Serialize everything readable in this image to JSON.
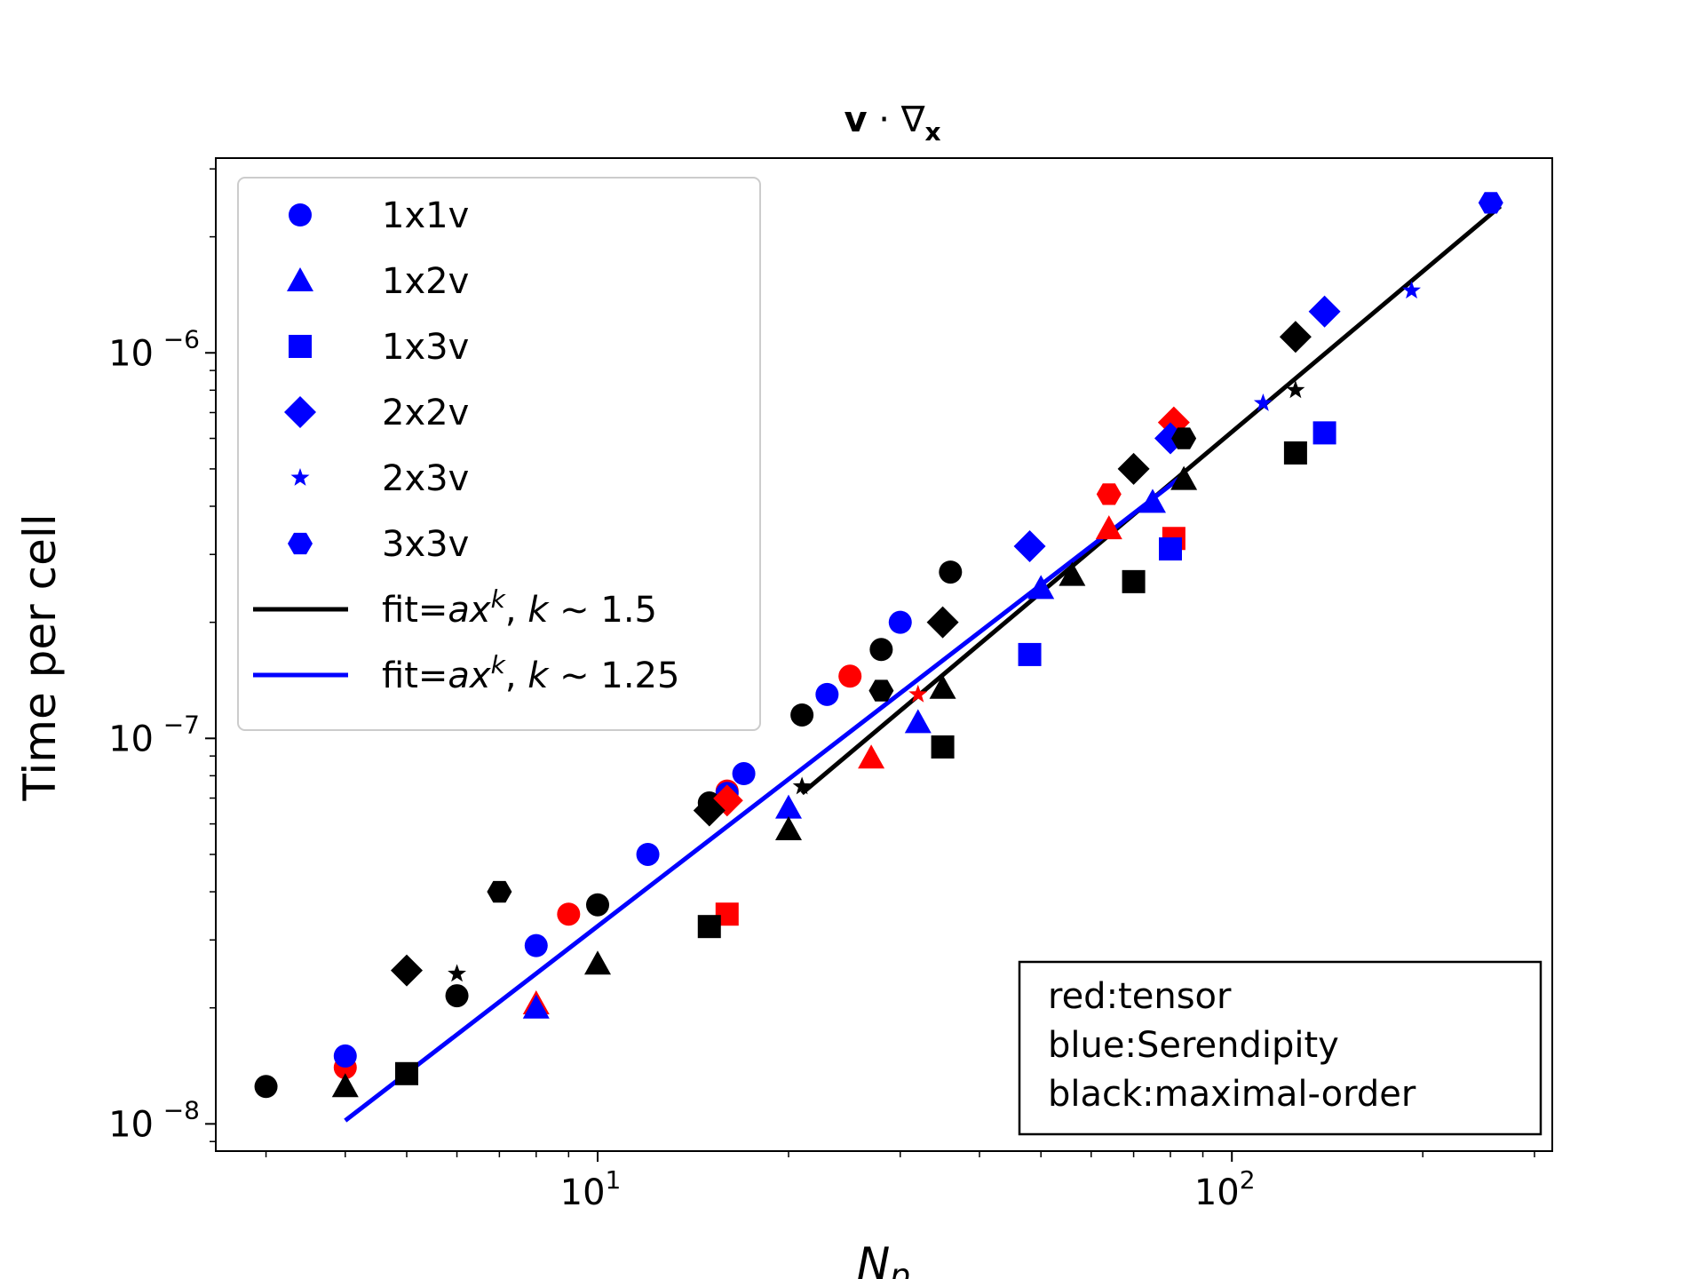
{
  "chart_data": {
    "type": "scatter",
    "title": "v · ∇x",
    "title_bold": "v",
    "title_mid": " · ∇",
    "title_sub": "x",
    "xlabel": "N",
    "xlabel_sub": "p",
    "ylabel": "Time per cell",
    "xscale": "log",
    "yscale": "log",
    "xlim": [
      2.5,
      320
    ],
    "ylim": [
      8.5e-09,
      3.2e-06
    ],
    "x_ticks": [
      {
        "value": 10,
        "base": "10",
        "exp": "1"
      },
      {
        "value": 100,
        "base": "10",
        "exp": "2"
      }
    ],
    "y_ticks": [
      {
        "value": 1e-08,
        "base": "10",
        "exp": "−8"
      },
      {
        "value": 1e-07,
        "base": "10",
        "exp": "−7"
      },
      {
        "value": 1e-06,
        "base": "10",
        "exp": "−6"
      }
    ],
    "colors": {
      "tensor": "#ff0000",
      "serendipity": "#0000ff",
      "maximal": "#000000"
    },
    "legend": [
      {
        "label": "1x1v",
        "marker": "circle"
      },
      {
        "label": "1x2v",
        "marker": "triangle"
      },
      {
        "label": "1x3v",
        "marker": "square"
      },
      {
        "label": "2x2v",
        "marker": "diamond"
      },
      {
        "label": "2x3v",
        "marker": "star"
      },
      {
        "label": "3x3v",
        "marker": "hexagon"
      },
      {
        "label_pre": "fit=",
        "label_a": "a",
        "label_x": "x",
        "label_k_sup": "k",
        "label_post": ", ",
        "label_k": "k",
        "label_val": " ∼ 1.5",
        "marker": "line",
        "color": "#000000"
      },
      {
        "label_pre": "fit=",
        "label_a": "a",
        "label_x": "x",
        "label_k_sup": "k",
        "label_post": ", ",
        "label_k": "k",
        "label_val": " ∼ 1.25",
        "marker": "line",
        "color": "#0000ff"
      }
    ],
    "annotation": [
      "red:tensor",
      "blue:Serendipity",
      "black:maximal-order"
    ],
    "fits": [
      {
        "name": "fit k~1.5",
        "color": "#000000",
        "x": [
          21,
          265
        ],
        "y": [
          7.2e-08,
          2.4e-06
        ]
      },
      {
        "name": "fit k~1.25",
        "color": "#0000ff",
        "x": [
          4,
          85
        ],
        "y": [
          1.02e-08,
          4.9e-07
        ]
      }
    ],
    "series": [
      {
        "name": "1x1v tensor",
        "marker": "circle",
        "color": "#ff0000",
        "x": [
          4,
          9,
          16,
          25
        ],
        "y": [
          1.4e-08,
          3.5e-08,
          7.3e-08,
          1.45e-07
        ]
      },
      {
        "name": "1x1v serendipity",
        "marker": "circle",
        "color": "#0000ff",
        "x": [
          4,
          8,
          12,
          16,
          17,
          23,
          30
        ],
        "y": [
          1.5e-08,
          2.9e-08,
          5e-08,
          7.2e-08,
          8.1e-08,
          1.3e-07,
          2e-07
        ]
      },
      {
        "name": "1x1v maximal",
        "marker": "circle",
        "color": "#000000",
        "x": [
          3,
          6,
          10,
          15,
          21,
          28,
          36
        ],
        "y": [
          1.25e-08,
          2.15e-08,
          3.7e-08,
          6.8e-08,
          1.15e-07,
          1.7e-07,
          2.7e-07
        ]
      },
      {
        "name": "1x2v tensor",
        "marker": "triangle",
        "color": "#ff0000",
        "x": [
          8,
          27,
          64
        ],
        "y": [
          2.05e-08,
          8.9e-08,
          3.5e-07
        ]
      },
      {
        "name": "1x2v serendipity",
        "marker": "triangle",
        "color": "#0000ff",
        "x": [
          8,
          20,
          32,
          50,
          75
        ],
        "y": [
          2e-08,
          6.6e-08,
          1.1e-07,
          2.45e-07,
          4.1e-07
        ]
      },
      {
        "name": "1x2v maximal",
        "marker": "triangle",
        "color": "#000000",
        "x": [
          4,
          10,
          20,
          35,
          56,
          84
        ],
        "y": [
          1.25e-08,
          2.6e-08,
          5.8e-08,
          1.35e-07,
          2.65e-07,
          4.7e-07
        ]
      },
      {
        "name": "1x3v tensor",
        "marker": "square",
        "color": "#ff0000",
        "x": [
          16,
          81
        ],
        "y": [
          3.5e-08,
          3.3e-07
        ]
      },
      {
        "name": "1x3v serendipity",
        "marker": "square",
        "color": "#0000ff",
        "x": [
          48,
          80,
          140
        ],
        "y": [
          1.65e-07,
          3.1e-07,
          6.2e-07
        ]
      },
      {
        "name": "1x3v maximal",
        "marker": "square",
        "color": "#000000",
        "x": [
          5,
          15,
          35,
          70,
          126
        ],
        "y": [
          1.35e-08,
          3.25e-08,
          9.5e-08,
          2.55e-07,
          5.5e-07
        ]
      },
      {
        "name": "2x2v tensor",
        "marker": "diamond",
        "color": "#ff0000",
        "x": [
          16,
          81
        ],
        "y": [
          6.9e-08,
          6.6e-07
        ]
      },
      {
        "name": "2x2v serendipity",
        "marker": "diamond",
        "color": "#0000ff",
        "x": [
          48,
          80,
          140
        ],
        "y": [
          3.15e-07,
          6e-07,
          1.28e-06
        ]
      },
      {
        "name": "2x2v maximal",
        "marker": "diamond",
        "color": "#000000",
        "x": [
          5,
          15,
          35,
          70,
          126
        ],
        "y": [
          2.5e-08,
          6.5e-08,
          2e-07,
          5e-07,
          1.1e-06
        ]
      },
      {
        "name": "2x3v tensor",
        "marker": "star",
        "color": "#ff0000",
        "x": [
          32
        ],
        "y": [
          1.3e-07
        ]
      },
      {
        "name": "2x3v serendipity",
        "marker": "star",
        "color": "#0000ff",
        "x": [
          112,
          192
        ],
        "y": [
          7.4e-07,
          1.45e-06
        ]
      },
      {
        "name": "2x3v maximal",
        "marker": "star",
        "color": "#000000",
        "x": [
          6,
          21,
          126
        ],
        "y": [
          2.45e-08,
          7.5e-08,
          8e-07
        ]
      },
      {
        "name": "3x3v tensor",
        "marker": "hexagon",
        "color": "#ff0000",
        "x": [
          64
        ],
        "y": [
          4.3e-07
        ]
      },
      {
        "name": "3x3v serendipity",
        "marker": "hexagon",
        "color": "#0000ff",
        "x": [
          256
        ],
        "y": [
          2.45e-06
        ]
      },
      {
        "name": "3x3v maximal",
        "marker": "hexagon",
        "color": "#000000",
        "x": [
          7,
          28,
          84
        ],
        "y": [
          4e-08,
          1.33e-07,
          6e-07
        ]
      }
    ]
  }
}
